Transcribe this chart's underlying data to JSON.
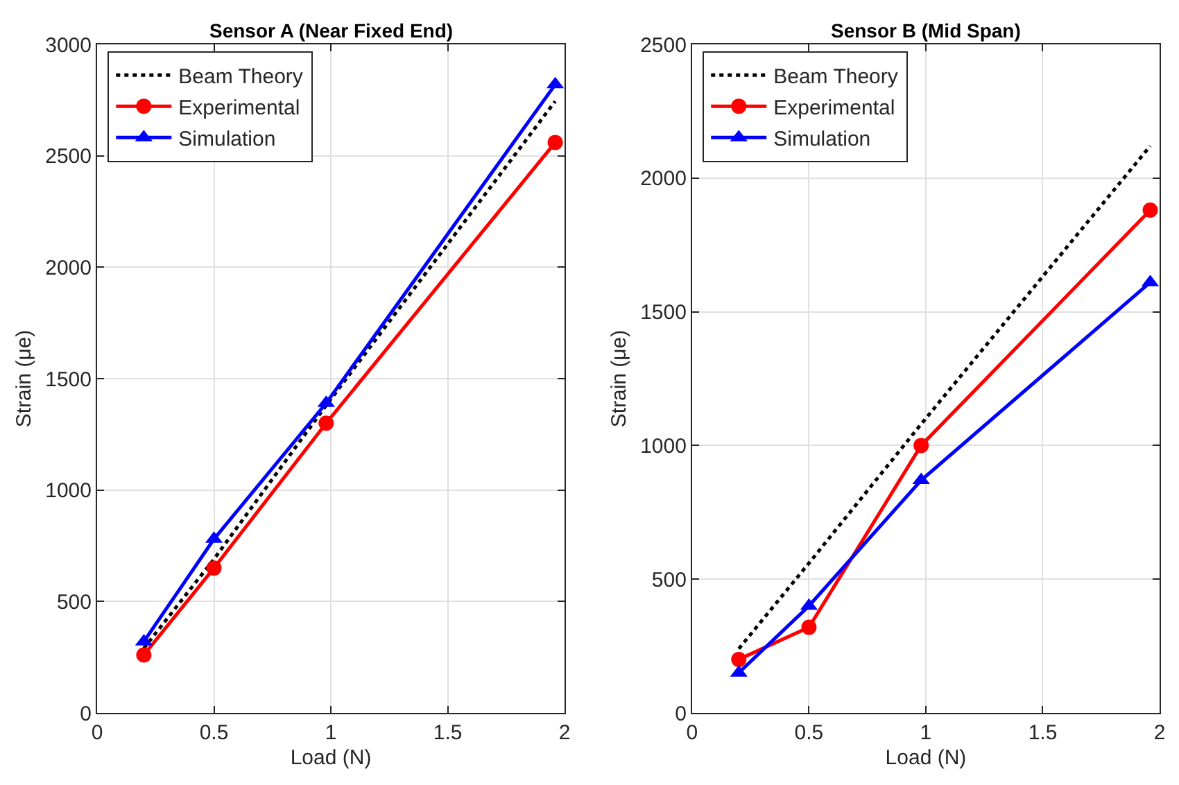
{
  "chart_data": [
    {
      "type": "line",
      "title": "Sensor A (Near Fixed End)",
      "xlabel": "Load (N)",
      "ylabel": "Strain (μe)",
      "xlim": [
        0,
        2
      ],
      "xticks": [
        0,
        0.5,
        1,
        1.5,
        2
      ],
      "ylim": [
        0,
        3000
      ],
      "yticks": [
        0,
        500,
        1000,
        1500,
        2000,
        2500,
        3000
      ],
      "grid": true,
      "legend": "top left",
      "series": [
        {
          "name": "Beam Theory",
          "color": "#000000",
          "line_style": "dotted",
          "marker": "none",
          "x": [
            0.2,
            0.5,
            0.98,
            1.96
          ],
          "values": [
            290,
            690,
            1380,
            2745
          ]
        },
        {
          "name": "Experimental",
          "color": "#ff0000",
          "line_style": "solid",
          "marker": "circle",
          "x": [
            0.2,
            0.5,
            0.98,
            1.96
          ],
          "values": [
            260,
            650,
            1300,
            2560
          ]
        },
        {
          "name": "Simulation",
          "color": "#0000ff",
          "line_style": "solid",
          "marker": "triangle",
          "x": [
            0.2,
            0.5,
            0.98,
            1.96
          ],
          "values": [
            320,
            780,
            1390,
            2820
          ]
        }
      ]
    },
    {
      "type": "line",
      "title": "Sensor B (Mid Span)",
      "xlabel": "Load (N)",
      "ylabel": "Strain (μe)",
      "xlim": [
        0,
        2
      ],
      "xticks": [
        0,
        0.5,
        1,
        1.5,
        2
      ],
      "ylim": [
        0,
        2500
      ],
      "yticks": [
        0,
        500,
        1000,
        1500,
        2000,
        2500
      ],
      "grid": true,
      "legend": "top left",
      "series": [
        {
          "name": "Beam Theory",
          "color": "#000000",
          "line_style": "dotted",
          "marker": "none",
          "x": [
            0.2,
            0.5,
            0.98,
            1.96
          ],
          "values": [
            240,
            560,
            1080,
            2120
          ]
        },
        {
          "name": "Experimental",
          "color": "#ff0000",
          "line_style": "solid",
          "marker": "circle",
          "x": [
            0.2,
            0.5,
            0.98,
            1.96
          ],
          "values": [
            200,
            320,
            1000,
            1880
          ]
        },
        {
          "name": "Simulation",
          "color": "#0000ff",
          "line_style": "solid",
          "marker": "triangle",
          "x": [
            0.2,
            0.5,
            0.98,
            1.96
          ],
          "values": [
            150,
            400,
            870,
            1610
          ]
        }
      ]
    }
  ]
}
